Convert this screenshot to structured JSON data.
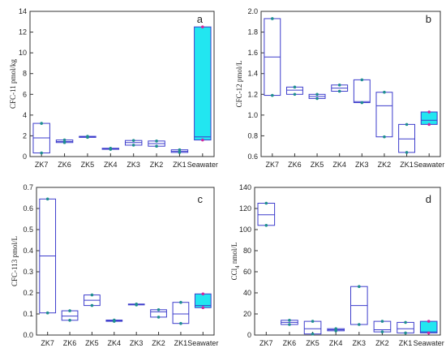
{
  "colors": {
    "box_stroke": "#3d3dcc",
    "seawater_fill": "#22e6f0",
    "point": "#1f8f8f",
    "seawater_point": "#d1289e",
    "axis": "#333333"
  },
  "chart_data": [
    {
      "type": "box",
      "panel_label": "a",
      "ylabel": "CFC-11 pmol/kg",
      "categories": [
        "ZK7",
        "ZK6",
        "ZK5",
        "ZK4",
        "ZK3",
        "ZK2",
        "ZK1",
        "Seawater"
      ],
      "ylim": [
        0,
        14
      ],
      "yticks": [
        0,
        2,
        4,
        6,
        8,
        10,
        12,
        14
      ],
      "boxes": [
        {
          "category": "ZK7",
          "min": 0.35,
          "median": 1.8,
          "max": 3.2
        },
        {
          "category": "ZK6",
          "min": 1.35,
          "median": 1.45,
          "max": 1.6
        },
        {
          "category": "ZK5",
          "min": 1.85,
          "median": 1.9,
          "max": 1.95
        },
        {
          "category": "ZK4",
          "min": 0.7,
          "median": 0.75,
          "max": 0.8
        },
        {
          "category": "ZK3",
          "min": 1.1,
          "median": 1.35,
          "max": 1.55
        },
        {
          "category": "ZK2",
          "min": 1.0,
          "median": 1.25,
          "max": 1.5
        },
        {
          "category": "ZK1",
          "min": 0.4,
          "median": 0.5,
          "max": 0.65
        },
        {
          "category": "Seawater",
          "min": 1.6,
          "median": 1.9,
          "max": 12.5,
          "filled": true
        }
      ]
    },
    {
      "type": "box",
      "panel_label": "b",
      "ylabel": "CFC-12 pmol/L",
      "categories": [
        "ZK7",
        "ZK6",
        "ZK5",
        "ZK4",
        "ZK3",
        "ZK2",
        "ZK1",
        "Seawater"
      ],
      "ylim": [
        0.6,
        2.0
      ],
      "yticks": [
        0.6,
        0.8,
        1.0,
        1.2,
        1.4,
        1.6,
        1.8,
        2.0
      ],
      "boxes": [
        {
          "category": "ZK7",
          "min": 1.19,
          "median": 1.56,
          "max": 1.93
        },
        {
          "category": "ZK6",
          "min": 1.2,
          "median": 1.24,
          "max": 1.27
        },
        {
          "category": "ZK5",
          "min": 1.16,
          "median": 1.18,
          "max": 1.2
        },
        {
          "category": "ZK4",
          "min": 1.23,
          "median": 1.26,
          "max": 1.29
        },
        {
          "category": "ZK3",
          "min": 1.12,
          "median": 1.13,
          "max": 1.34
        },
        {
          "category": "ZK2",
          "min": 0.79,
          "median": 1.09,
          "max": 1.22
        },
        {
          "category": "ZK1",
          "min": 0.64,
          "median": 0.77,
          "max": 0.91
        },
        {
          "category": "Seawater",
          "min": 0.91,
          "median": 0.95,
          "max": 1.03,
          "filled": true
        }
      ]
    },
    {
      "type": "box",
      "panel_label": "c",
      "ylabel": "CFC-113 pmol/L",
      "categories": [
        "ZK7",
        "ZK6",
        "ZK5",
        "ZK4",
        "ZK3",
        "ZK2",
        "ZK1",
        "Seawater"
      ],
      "ylim": [
        0.0,
        0.7
      ],
      "yticks": [
        0.0,
        0.1,
        0.2,
        0.3,
        0.4,
        0.5,
        0.6,
        0.7
      ],
      "boxes": [
        {
          "category": "ZK7",
          "min": 0.105,
          "median": 0.375,
          "max": 0.645
        },
        {
          "category": "ZK6",
          "min": 0.07,
          "median": 0.09,
          "max": 0.115
        },
        {
          "category": "ZK5",
          "min": 0.14,
          "median": 0.165,
          "max": 0.19
        },
        {
          "category": "ZK4",
          "min": 0.065,
          "median": 0.068,
          "max": 0.071
        },
        {
          "category": "ZK3",
          "min": 0.143,
          "median": 0.145,
          "max": 0.147
        },
        {
          "category": "ZK2",
          "min": 0.085,
          "median": 0.11,
          "max": 0.12
        },
        {
          "category": "ZK1",
          "min": 0.055,
          "median": 0.1,
          "max": 0.155
        },
        {
          "category": "Seawater",
          "min": 0.13,
          "median": 0.14,
          "max": 0.195,
          "filled": true
        }
      ]
    },
    {
      "type": "box",
      "panel_label": "d",
      "ylabel": "CCl4 nmol/L",
      "ylabel_main": "CCl",
      "ylabel_sub": "4",
      "ylabel_rest": " nmol/L",
      "categories": [
        "ZK7",
        "ZK6",
        "ZK5",
        "ZK4",
        "ZK3",
        "ZK2",
        "ZK1",
        "Seawater"
      ],
      "ylim": [
        0,
        140
      ],
      "yticks": [
        0,
        20,
        40,
        60,
        80,
        100,
        120,
        140
      ],
      "boxes": [
        {
          "category": "ZK7",
          "min": 104,
          "median": 114,
          "max": 125
        },
        {
          "category": "ZK6",
          "min": 10,
          "median": 12,
          "max": 14
        },
        {
          "category": "ZK5",
          "min": 1,
          "median": 6,
          "max": 13
        },
        {
          "category": "ZK4",
          "min": 4,
          "median": 5,
          "max": 6
        },
        {
          "category": "ZK3",
          "min": 10,
          "median": 28,
          "max": 46
        },
        {
          "category": "ZK2",
          "min": 3,
          "median": 5,
          "max": 13
        },
        {
          "category": "ZK1",
          "min": 2,
          "median": 6,
          "max": 12
        },
        {
          "category": "Seawater",
          "min": 2,
          "median": 3,
          "max": 13,
          "filled": true
        }
      ]
    }
  ]
}
